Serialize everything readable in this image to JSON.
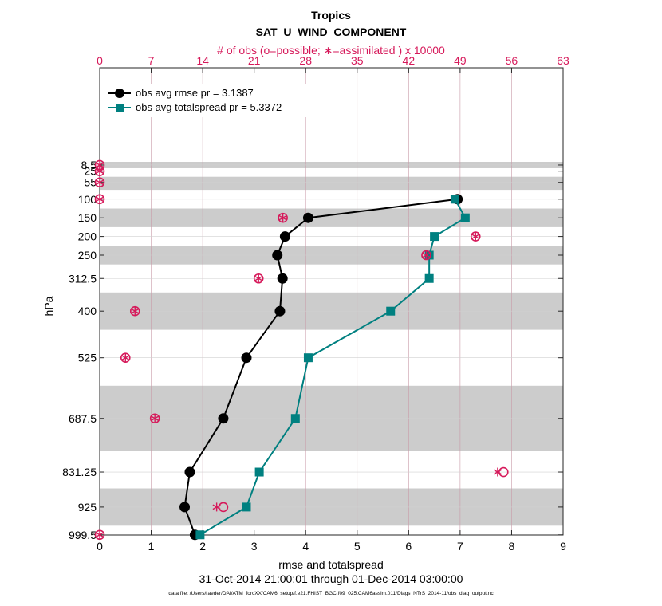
{
  "chart_data": {
    "type": "line",
    "title": "Tropics",
    "subtitle": "SAT_U_WIND_COMPONENT",
    "top_axis_label": "# of obs (o=possible; ∗=assimilated ) x 10000",
    "xlabel": "rmse and totalspread",
    "ylabel": "hPa",
    "date_range": "31-Oct-2014 21:00:01 through 01-Dec-2014 03:00:00",
    "footer": "data file: /Users/raeder/DAI/ATM_forcXX/CAM6_setup/f.e21.FHIST_BGC.f09_025.CAM6assim.011/Diags_NTrS_2014-11/obs_diag_output.nc",
    "xlim": [
      0,
      9
    ],
    "x_ticks": [
      "0",
      "1",
      "2",
      "3",
      "4",
      "5",
      "6",
      "7",
      "8",
      "9"
    ],
    "top_xlim": [
      0,
      63
    ],
    "top_ticks": [
      "0",
      "7",
      "14",
      "21",
      "28",
      "35",
      "42",
      "49",
      "56",
      "63"
    ],
    "y_levels": [
      8.5,
      25,
      55,
      100,
      150,
      200,
      250,
      312.5,
      400,
      525,
      687.5,
      831.25,
      925,
      999.5
    ],
    "y_tick_labels": [
      "8.5",
      "25",
      "55",
      "100",
      "150",
      "200",
      "250",
      "312.5",
      "400",
      "525",
      "687.5",
      "831.25",
      "925",
      "999.5"
    ],
    "shaded_bands_hPa": [
      [
        0,
        17
      ],
      [
        40,
        75
      ],
      [
        125,
        175
      ],
      [
        225,
        275
      ],
      [
        350,
        450
      ],
      [
        600,
        775
      ],
      [
        875,
        975
      ]
    ],
    "series": [
      {
        "name": "obs avg rmse",
        "legend": "obs avg rmse    pr = 3.1387",
        "color": "#000000",
        "marker": "circle",
        "levels": [
          100,
          150,
          200,
          250,
          312.5,
          400,
          525,
          687.5,
          831.25,
          925,
          999.5
        ],
        "values": [
          6.95,
          4.05,
          3.6,
          3.45,
          3.55,
          3.5,
          2.85,
          2.4,
          1.75,
          1.65,
          1.85
        ]
      },
      {
        "name": "obs avg totalspread",
        "legend": "obs avg totalspread    pr = 5.3372",
        "color": "#008080",
        "marker": "square",
        "levels": [
          100,
          150,
          200,
          250,
          312.5,
          400,
          525,
          687.5,
          831.25,
          925,
          999.5
        ],
        "values": [
          6.9,
          7.1,
          6.5,
          6.4,
          6.4,
          5.65,
          4.05,
          3.8,
          3.1,
          2.85,
          1.95
        ]
      }
    ],
    "obs_counts_x10000": {
      "levels": [
        8.5,
        25,
        55,
        100,
        150,
        250,
        200,
        312.5,
        400,
        525,
        687.5,
        831.25,
        925,
        999.5
      ],
      "possible": [
        0,
        0,
        0,
        0,
        24.9,
        44.4,
        51.1,
        21.6,
        4.8,
        3.5,
        7.5,
        54.9,
        16.8,
        0
      ],
      "assimilated": [
        0,
        0,
        0,
        0,
        24.9,
        44.4,
        51.1,
        21.6,
        4.8,
        3.5,
        7.5,
        54.1,
        15.9,
        0
      ]
    },
    "colors": {
      "obs": "#d6195a",
      "band": "#cccccc",
      "grid": "#c99aa8"
    }
  }
}
